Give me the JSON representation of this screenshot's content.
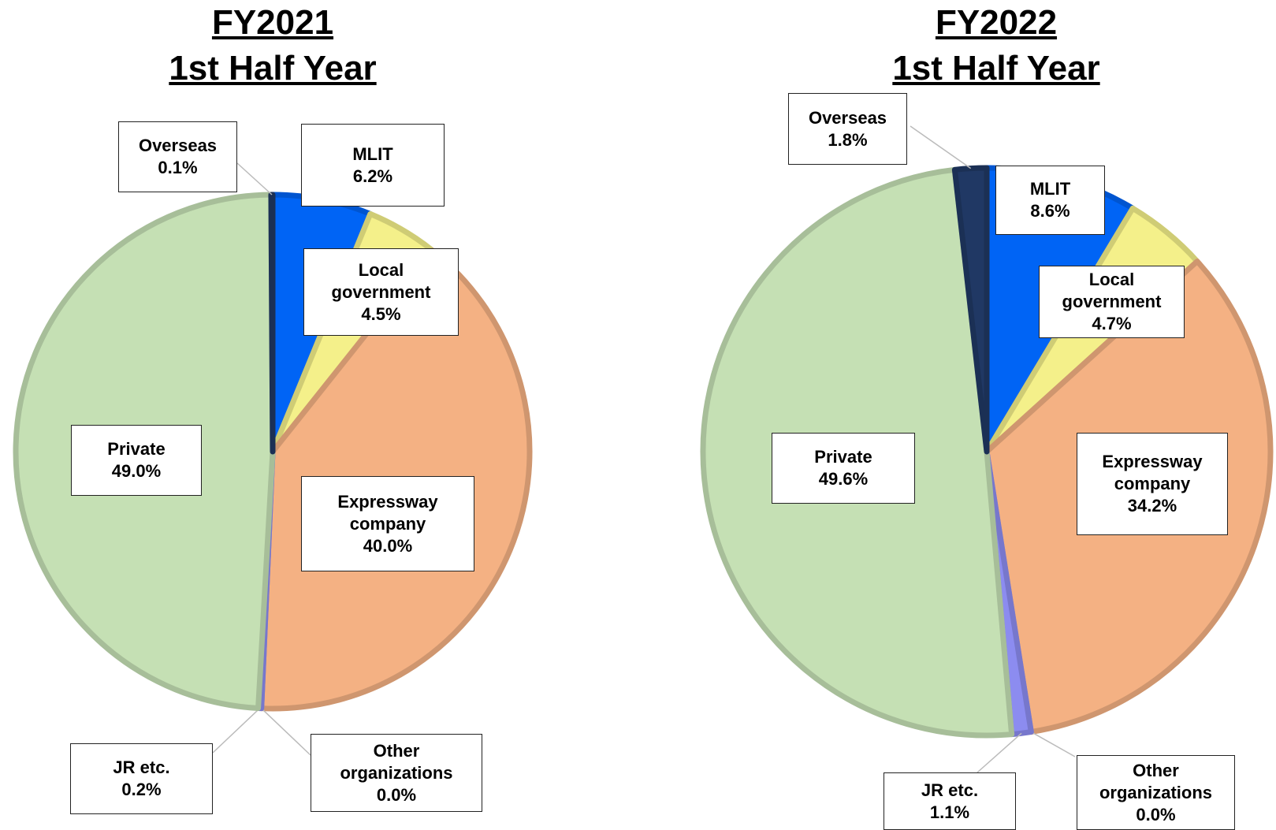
{
  "chart_data": [
    {
      "type": "pie",
      "title": "FY2021",
      "subtitle": "1st Half Year",
      "categories": [
        "MLIT",
        "Local government",
        "Expressway company",
        "Other organizations",
        "JR etc.",
        "Private",
        "Overseas"
      ],
      "values": [
        6.2,
        4.5,
        40.0,
        0.0,
        0.2,
        49.0,
        0.1
      ],
      "value_labels": [
        "6.2%",
        "4.5%",
        "40.0%",
        "0.0%",
        "0.2%",
        "49.0%",
        "0.1%"
      ],
      "colors": [
        "#0064f5",
        "#f4f08a",
        "#f4b183",
        "#a9a9f7",
        "#8c8cf0",
        "#c5e0b4",
        "#203864"
      ]
    },
    {
      "type": "pie",
      "title": "FY2022",
      "subtitle": "1st Half Year",
      "categories": [
        "MLIT",
        "Local government",
        "Expressway company",
        "Other organizations",
        "JR etc.",
        "Private",
        "Overseas"
      ],
      "values": [
        8.6,
        4.7,
        34.2,
        0.0,
        1.1,
        49.6,
        1.8
      ],
      "value_labels": [
        "8.6%",
        "4.7%",
        "34.2%",
        "0.0%",
        "1.1%",
        "49.6%",
        "1.8%"
      ],
      "colors": [
        "#0064f5",
        "#f4f08a",
        "#f4b183",
        "#a9a9f7",
        "#8c8cf0",
        "#c5e0b4",
        "#203864"
      ]
    }
  ]
}
